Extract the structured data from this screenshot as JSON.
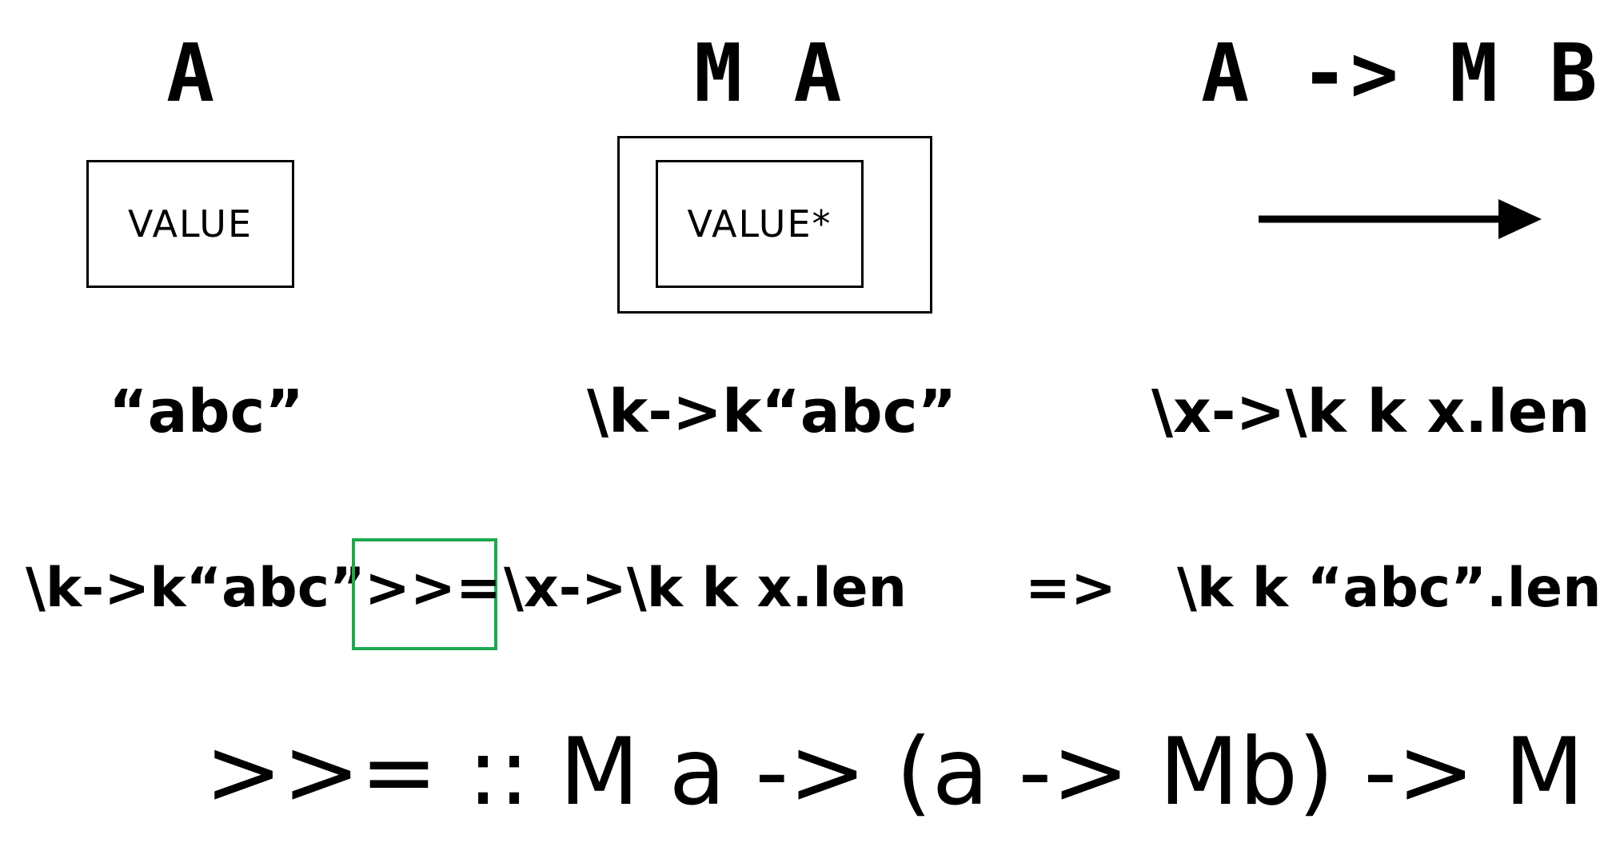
{
  "headers": {
    "a": "A",
    "ma": "M  A",
    "amb": "A -> M B"
  },
  "boxes": {
    "value": "VALUE",
    "value_star": "VALUE*"
  },
  "examples": {
    "a": "“abc”",
    "ma": "\\k->k“abc”",
    "amb": "\\x->\\k k x.len"
  },
  "bind_row": {
    "left": "\\k->k“abc”",
    "operator": ">>=",
    "right": "\\x->\\k k x.len",
    "arrow": "=>",
    "result": "\\k k “abc”.len"
  },
  "signature": ">>= :: M a  -> (a -> Mb) -> M b",
  "colors": {
    "highlight": "#1fa84f"
  }
}
